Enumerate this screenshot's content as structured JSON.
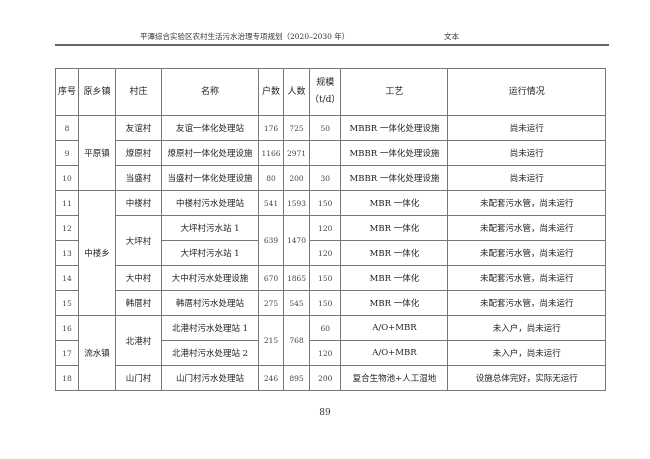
{
  "header": {
    "title": "平潭综合实验区农村生活污水治理专项规划（2020–2030 年）",
    "label": "文本"
  },
  "table": {
    "columns": {
      "seq": "序号",
      "town": "原乡镇",
      "village": "村庄",
      "name": "名称",
      "households": "户数",
      "population": "人数",
      "scale": "规模",
      "scale_unit": "（t/d）",
      "process": "工艺",
      "status": "运行情况"
    },
    "rows": [
      {
        "seq": "8",
        "town": "平原镇",
        "village": "友谊村",
        "name": "友谊一体化处理站",
        "households": "176",
        "population": "725",
        "scale": "50",
        "process": "MBBR 一体化处理设施",
        "status": "尚未运行"
      },
      {
        "seq": "9",
        "village": "燎原村",
        "name": "燎原村一体化处理设施",
        "households": "1166",
        "population": "2971",
        "scale": "",
        "process": "MBBR 一体化处理设施",
        "status": "尚未运行"
      },
      {
        "seq": "10",
        "village": "当盛村",
        "name": "当盛村一体化处理设施",
        "households": "80",
        "population": "200",
        "scale": "30",
        "process": "MBBR 一体化处理设施",
        "status": "尚未运行"
      },
      {
        "seq": "11",
        "town": "中楼乡",
        "village": "中楼村",
        "name": "中楼村污水处理站",
        "households": "541",
        "population": "1593",
        "scale": "150",
        "process": "MBR 一体化",
        "status": "未配套污水管，尚未运行"
      },
      {
        "seq": "12",
        "village": "大坪村",
        "name": "大坪村污水站 1",
        "households": "639",
        "population": "1470",
        "scale": "120",
        "process": "MBR 一体化",
        "status": "未配套污水管，尚未运行"
      },
      {
        "seq": "13",
        "name": "大坪村污水站 1",
        "scale": "120",
        "process": "MBR 一体化",
        "status": "未配套污水管，尚未运行"
      },
      {
        "seq": "14",
        "village": "大中村",
        "name": "大中村污水处理设施",
        "households": "670",
        "population": "1865",
        "scale": "150",
        "process": "MBR 一体化",
        "status": "未配套污水管，尚未运行"
      },
      {
        "seq": "15",
        "village": "韩厝村",
        "name": "韩厝村污水处理站",
        "households": "275",
        "population": "545",
        "scale": "150",
        "process": "MBR 一体化",
        "status": "未配套污水管，尚未运行"
      },
      {
        "seq": "16",
        "town": "流水镇",
        "village": "北港村",
        "name": "北港村污水处理站 1",
        "households": "215",
        "population": "768",
        "scale": "60",
        "process": "A/O+MBR",
        "status": "未入户，尚未运行"
      },
      {
        "seq": "17",
        "name": "北港村污水处理站 2",
        "scale": "120",
        "process": "A/O+MBR",
        "status": "未入户，尚未运行"
      },
      {
        "seq": "18",
        "village": "山门村",
        "name": "山门村污水处理站",
        "households": "246",
        "population": "895",
        "scale": "200",
        "process": "复合生物池+人工湿地",
        "status": "设施总体完好，实际无运行"
      }
    ]
  },
  "page_number": "89"
}
